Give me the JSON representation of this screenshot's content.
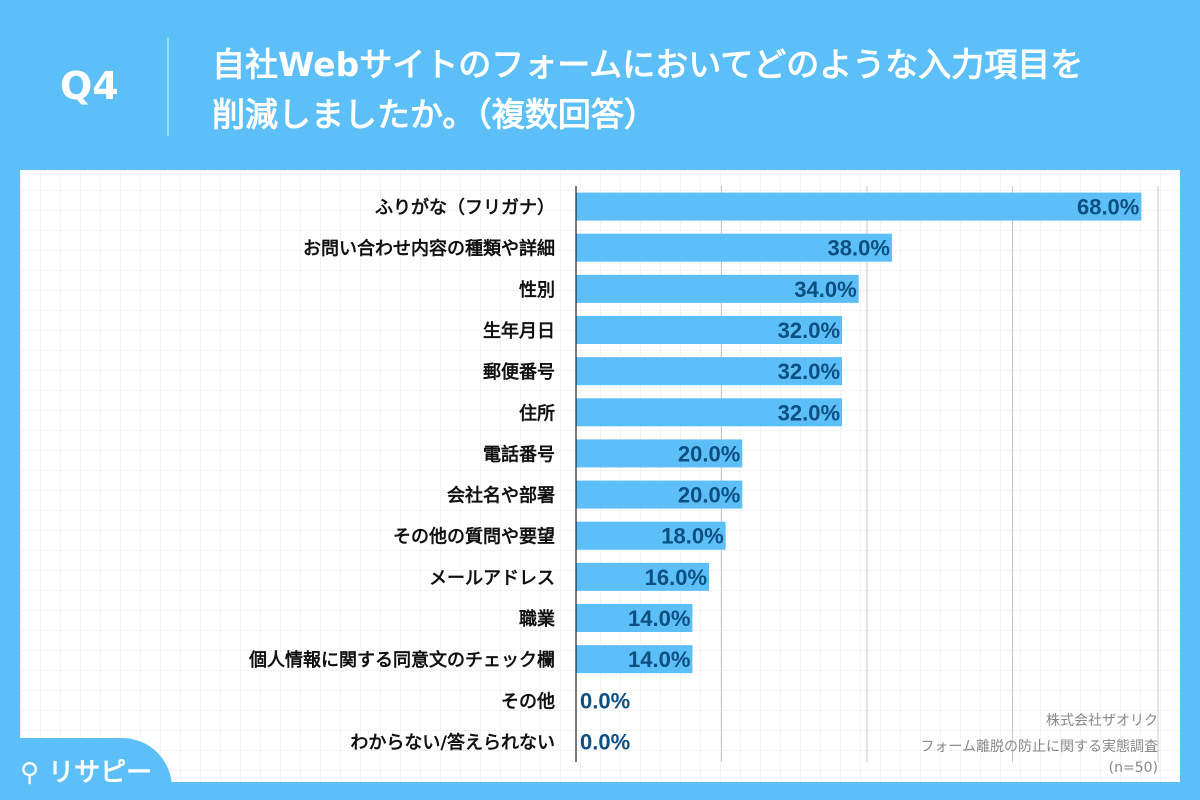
{
  "header": {
    "q_label": "Q4",
    "title_line1": "自社Webサイトのフォームにおいてどのような入力項目を",
    "title_line2": "削減しましたか。（複数回答）"
  },
  "chart_data": {
    "type": "bar",
    "orientation": "horizontal",
    "categories": [
      "ふりがな（フリガナ）",
      "お問い合わせ内容の種類や詳細",
      "性別",
      "生年月日",
      "郵便番号",
      "住所",
      "電話番号",
      "会社名や部署",
      "その他の質問や要望",
      "メールアドレス",
      "職業",
      "個人情報に関する同意文のチェック欄",
      "その他",
      "わからない/答えられない"
    ],
    "values": [
      68.0,
      38.0,
      34.0,
      32.0,
      32.0,
      32.0,
      20.0,
      20.0,
      18.0,
      16.0,
      14.0,
      14.0,
      0.0,
      0.0
    ],
    "data_labels": [
      "68.0%",
      "38.0%",
      "34.0%",
      "32.0%",
      "32.0%",
      "32.0%",
      "20.0%",
      "20.0%",
      "18.0%",
      "16.0%",
      "14.0%",
      "14.0%",
      "0.0%",
      "0.0%"
    ],
    "xlim": [
      0,
      70
    ],
    "grid": true,
    "colors": {
      "bar": "#5cbff8",
      "label": "#0d4f80"
    }
  },
  "source": {
    "company": "株式会社ザオリク",
    "survey": "フォーム離脱の防止に関する実態調査",
    "n": "(n=50)"
  },
  "logo": {
    "text": "リサピー"
  }
}
